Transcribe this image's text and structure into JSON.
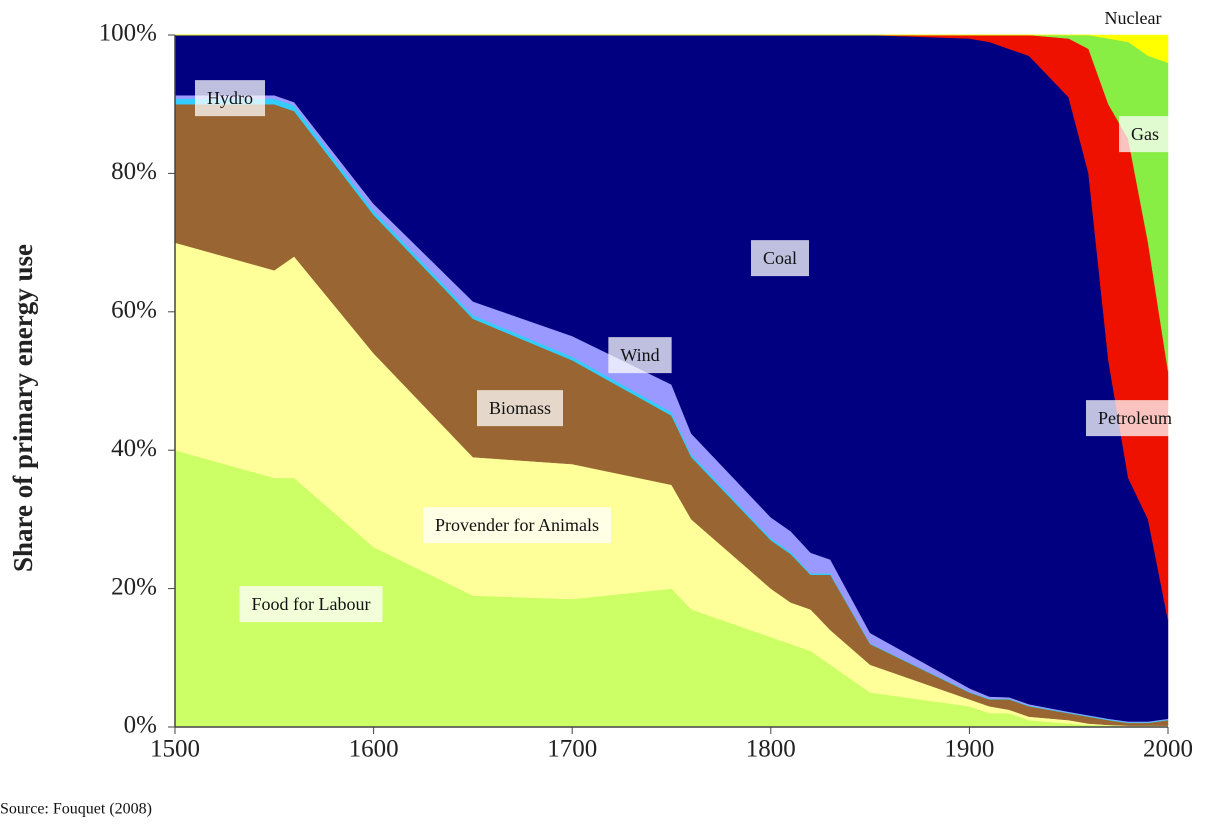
{
  "chart_data": {
    "type": "stacked-area",
    "y_label": "Share of primary energy use",
    "source": "Source: Fouquet (2008)",
    "x": [
      1500,
      1550,
      1560,
      1600,
      1650,
      1700,
      1750,
      1760,
      1800,
      1810,
      1820,
      1830,
      1850,
      1900,
      1910,
      1920,
      1930,
      1950,
      1960,
      1970,
      1980,
      1990,
      2000
    ],
    "series": [
      {
        "name": "Food for Labour",
        "color": "#ccff66",
        "values": [
          40,
          36,
          36,
          26,
          19,
          18.5,
          20,
          17,
          13,
          12,
          11,
          9,
          5,
          3,
          2,
          2,
          1,
          0.5,
          0.3,
          0.2,
          0.1,
          0.1,
          0.1
        ]
      },
      {
        "name": "Provender for Animals",
        "color": "#ffff99",
        "values": [
          30,
          30,
          32,
          28,
          20,
          19.5,
          15,
          13,
          7,
          6,
          6,
          5,
          4,
          1,
          1,
          0.5,
          0.5,
          0.5,
          0.2,
          0.1,
          0.1,
          0.1,
          0.1
        ]
      },
      {
        "name": "Biomass",
        "color": "#996633",
        "values": [
          20,
          24,
          21,
          20,
          20,
          15,
          10,
          9,
          7,
          7,
          5,
          8,
          3,
          1,
          1,
          1.5,
          1.5,
          1,
          1,
          0.7,
          0.4,
          0.4,
          0.8
        ]
      },
      {
        "name": "Hydro",
        "color": "#33ccff",
        "values": [
          0.8,
          0.8,
          0.8,
          0.6,
          0.5,
          0.5,
          0.5,
          0.4,
          0.3,
          0.3,
          0.2,
          0.2,
          0.1,
          0.1,
          0.1,
          0.1,
          0.1,
          0.1,
          0.1,
          0.1,
          0.1,
          0.1,
          0.1
        ]
      },
      {
        "name": "Wind",
        "color": "#9999ff",
        "values": [
          0.5,
          0.5,
          0.5,
          1,
          2,
          3,
          4,
          3,
          3,
          3,
          3,
          2,
          1.5,
          0.5,
          0.3,
          0.2,
          0.2,
          0.1,
          0.1,
          0.1,
          0.1,
          0.1,
          0.1
        ]
      },
      {
        "name": "Coal",
        "color": "#000080",
        "values": [
          8.7,
          8.7,
          9.7,
          24.4,
          38.5,
          43.5,
          50.5,
          57.6,
          69.7,
          71.7,
          74.8,
          75.8,
          86.4,
          93.9,
          94.6,
          93.7,
          93.7,
          88.8,
          78.3,
          51.8,
          35.2,
          29.2,
          14.3
        ]
      },
      {
        "name": "Petroleum",
        "color": "#ee1100",
        "values": [
          0,
          0,
          0,
          0,
          0,
          0,
          0,
          0,
          0,
          0,
          0,
          0,
          0,
          0.5,
          1,
          2,
          3,
          8.5,
          18,
          37,
          49,
          40,
          36
        ]
      },
      {
        "name": "Gas",
        "color": "#88ee44",
        "values": [
          0,
          0,
          0,
          0,
          0,
          0,
          0,
          0,
          0,
          0,
          0,
          0,
          0,
          0,
          0,
          0,
          0,
          0.5,
          2,
          9.5,
          14,
          27,
          44.5
        ]
      },
      {
        "name": "Nuclear",
        "color": "#ffff00",
        "values": [
          0,
          0,
          0,
          0,
          0,
          0,
          0,
          0,
          0,
          0,
          0,
          0,
          0,
          0,
          0,
          0,
          0,
          0,
          0,
          0.5,
          1,
          3,
          4
        ]
      }
    ],
    "xlim": [
      1500,
      2000
    ],
    "xticks": [
      1500,
      1600,
      1700,
      1800,
      1900,
      2000
    ],
    "ylim": [
      0,
      100
    ],
    "yticks": [
      {
        "value": 0,
        "label": "0%"
      },
      {
        "value": 20,
        "label": "20%"
      },
      {
        "value": 40,
        "label": "40%"
      },
      {
        "value": 60,
        "label": "60%"
      },
      {
        "value": 80,
        "label": "80%"
      },
      {
        "value": 100,
        "label": "100%"
      }
    ]
  }
}
